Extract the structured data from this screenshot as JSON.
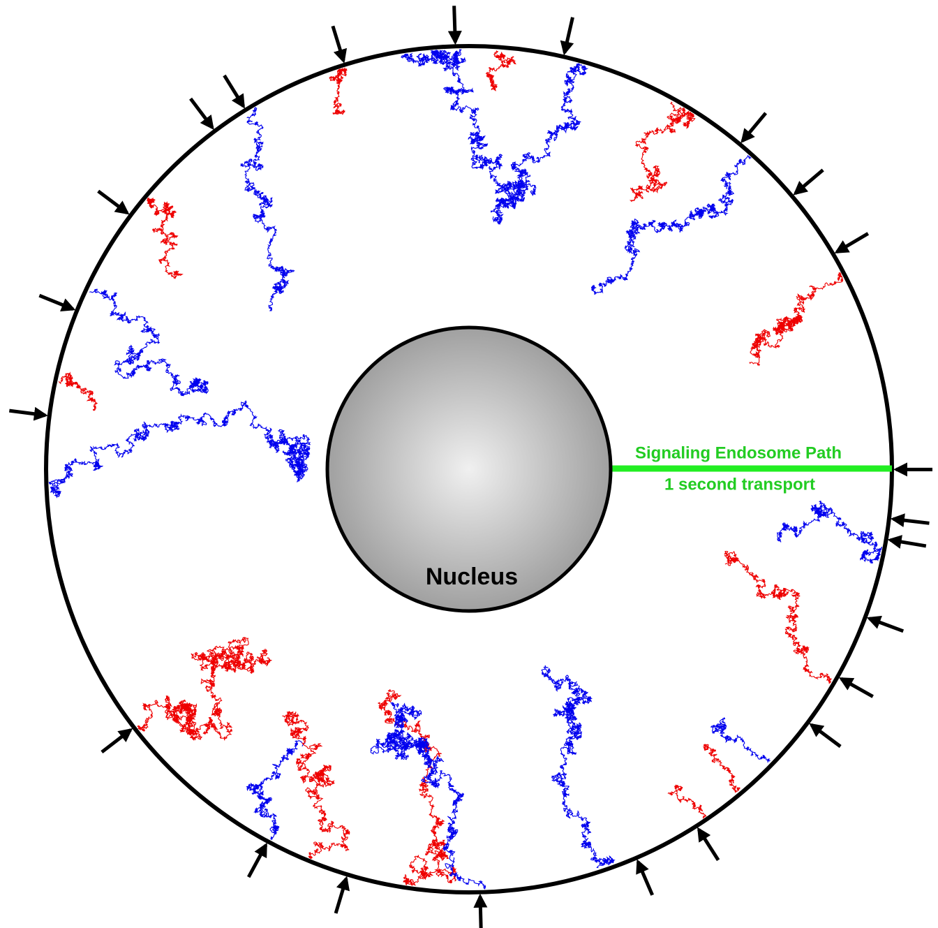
{
  "nucleus": {
    "label": "Nucleus"
  },
  "path": {
    "label": "Signaling Endosome Path",
    "caption": "1 second transport"
  }
}
